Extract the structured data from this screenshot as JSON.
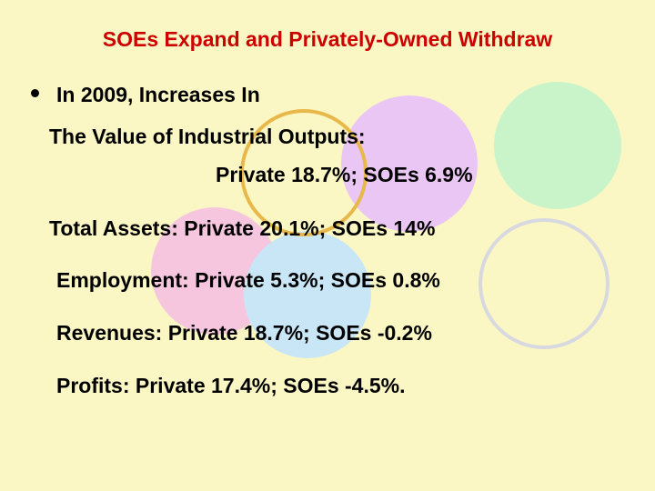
{
  "slide": {
    "title": "SOEs Expand and Privately-Owned Withdraw",
    "bullet_text": "In 2009, Increases In",
    "lines": [
      "The Value of Industrial Outputs:",
      "Private 18.7%; SOEs 6.9%",
      "Total Assets: Private 20.1%; SOEs 14%",
      "Employment: Private 5.3%; SOEs 0.8%",
      "Revenues: Private 18.7%; SOEs -0.2%",
      "Profits: Private 17.4%; SOEs -4.5%."
    ]
  },
  "colors": {
    "background": "#fbf7c4",
    "title": "#cc0000",
    "text": "#000000",
    "circle_orange_outline": "#e8b84a",
    "circle_violet_fill": "#e9c6f4",
    "circle_green_fill": "#c9f3c8",
    "circle_pink_fill": "#f6c6de",
    "circle_blue_fill": "#c9e6f6",
    "circle_grey_outline": "#d8d8e0"
  }
}
